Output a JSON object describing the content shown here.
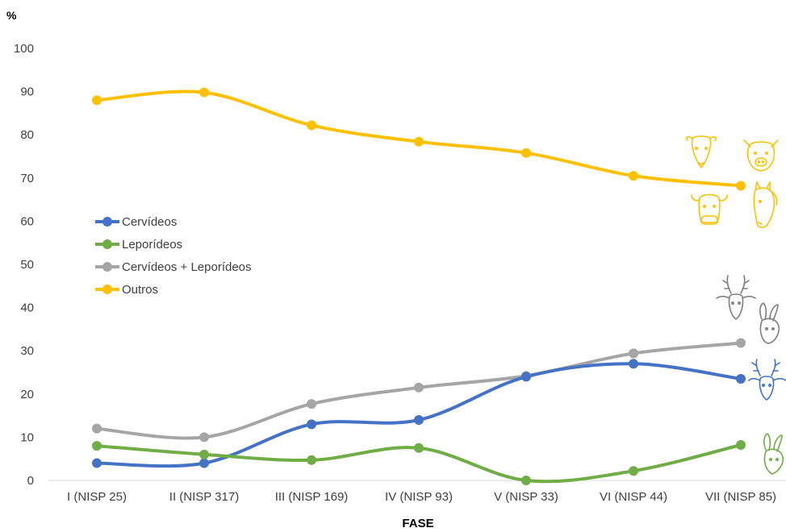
{
  "chart_data": {
    "type": "line",
    "ylabel": "%",
    "xlabel": "FASE",
    "ylim": [
      0,
      100
    ],
    "yticks": [
      "0",
      "10",
      "20",
      "30",
      "40",
      "50",
      "60",
      "70",
      "80",
      "90",
      "100"
    ],
    "categories": [
      "I (NISP 25)",
      "II (NISP 317)",
      "III (NISP 169)",
      "IV (NISP 93)",
      "V (NISP 33)",
      "VI (NISP 44)",
      "VII (NISP 85)"
    ],
    "series": [
      {
        "name": "Cervídeos",
        "color": "#4472C4",
        "values": [
          4,
          4,
          13,
          14,
          24,
          27,
          23.5
        ]
      },
      {
        "name": "Leporídeos",
        "color": "#70AD47",
        "values": [
          8,
          6,
          4.7,
          7.5,
          0,
          2.2,
          8.2
        ]
      },
      {
        "name": "Cervídeos + Leporídeos",
        "color": "#A5A5A5",
        "values": [
          12,
          10,
          17.7,
          21.5,
          24.2,
          29.4,
          31.8
        ]
      },
      {
        "name": "Outros",
        "color": "#FFC000",
        "values": [
          88,
          89.8,
          82.2,
          78.4,
          75.8,
          70.5,
          68.2
        ]
      }
    ],
    "grid": false,
    "legend": "left",
    "icons": {
      "outros": [
        "sheep-icon",
        "pig-icon",
        "cow-icon",
        "horse-icon"
      ],
      "cervideos_leporideos": [
        "deer-icon",
        "rabbit-icon"
      ],
      "cervideos": "deer-icon",
      "leporideos": "rabbit-icon"
    }
  }
}
